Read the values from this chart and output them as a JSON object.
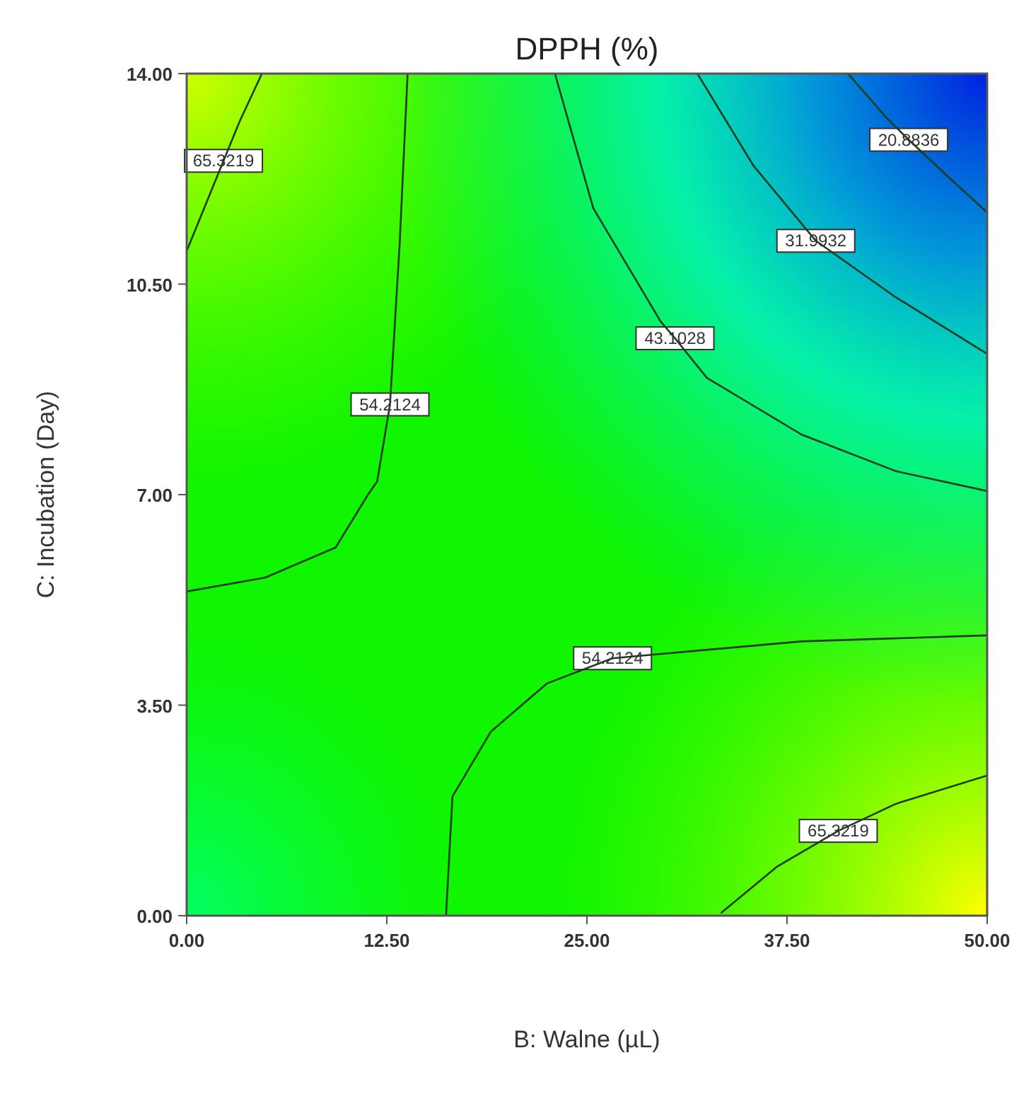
{
  "chart_data": {
    "type": "line",
    "title": "DPPH (%)",
    "xlabel": "B: Walne (µL)",
    "ylabel": "C: Incubation (Day)",
    "xlim": [
      0,
      50
    ],
    "ylim": [
      0,
      14
    ],
    "xticks": [
      {
        "value": 0,
        "label": "0.00"
      },
      {
        "value": 12.5,
        "label": "12.50"
      },
      {
        "value": 25,
        "label": "25.00"
      },
      {
        "value": 37.5,
        "label": "37.50"
      },
      {
        "value": 50,
        "label": "50.00"
      }
    ],
    "yticks": [
      {
        "value": 0,
        "label": "0.00"
      },
      {
        "value": 3.5,
        "label": "3.50"
      },
      {
        "value": 7,
        "label": "7.00"
      },
      {
        "value": 10.5,
        "label": "10.50"
      },
      {
        "value": 14,
        "label": "14.00"
      }
    ],
    "series": [
      {
        "color": "#1e3c1e",
        "x": [
          4.7,
          3.3,
          2.3,
          0,
          null,
          33.4,
          36.9,
          40.7,
          44.3,
          50
        ],
        "values": [
          14,
          13.2,
          12.55,
          11.05,
          null,
          0.05,
          0.82,
          1.41,
          1.86,
          2.33
        ]
      },
      {
        "color": "#1e3c1e",
        "x": [
          13.8,
          13.3,
          12.7,
          11.9,
          11.3,
          9.3,
          4.9,
          0,
          null,
          16.2,
          16.6,
          19,
          22.5,
          26.6,
          38.4,
          50
        ],
        "values": [
          14,
          11.15,
          8.5,
          7.22,
          6.99,
          6.12,
          5.62,
          5.39,
          null,
          0,
          1.98,
          3.06,
          3.86,
          4.28,
          4.56,
          4.66
        ]
      },
      {
        "color": "#1e3c1e",
        "x": [
          23,
          25.4,
          29.6,
          30.5,
          32.5,
          38.4,
          44.3,
          50
        ],
        "values": [
          14,
          11.76,
          9.88,
          9.6,
          8.94,
          8,
          7.39,
          7.06
        ]
      },
      {
        "color": "#1e3c1e",
        "x": [
          31.9,
          35.4,
          39.3,
          44.3,
          50
        ],
        "values": [
          14,
          12.47,
          11.22,
          10.28,
          9.34
        ]
      },
      {
        "color": "#1e3c1e",
        "x": [
          41.3,
          43.7,
          45.1,
          47.5,
          50
        ],
        "values": [
          14,
          13.27,
          12.9,
          12.3,
          11.69
        ]
      }
    ],
    "annotations": [
      {
        "text": "65.3219",
        "x": 2.3,
        "y": 12.55
      },
      {
        "text": "54.2124",
        "x": 12.7,
        "y": 8.5
      },
      {
        "text": "43.1028",
        "x": 30.5,
        "y": 9.6
      },
      {
        "text": "31.9932",
        "x": 39.3,
        "y": 11.22
      },
      {
        "text": "20.8836",
        "x": 45.1,
        "y": 12.9
      },
      {
        "text": "54.2124",
        "x": 26.6,
        "y": 4.28
      },
      {
        "text": "65.3219",
        "x": 40.7,
        "y": 1.41
      }
    ]
  }
}
